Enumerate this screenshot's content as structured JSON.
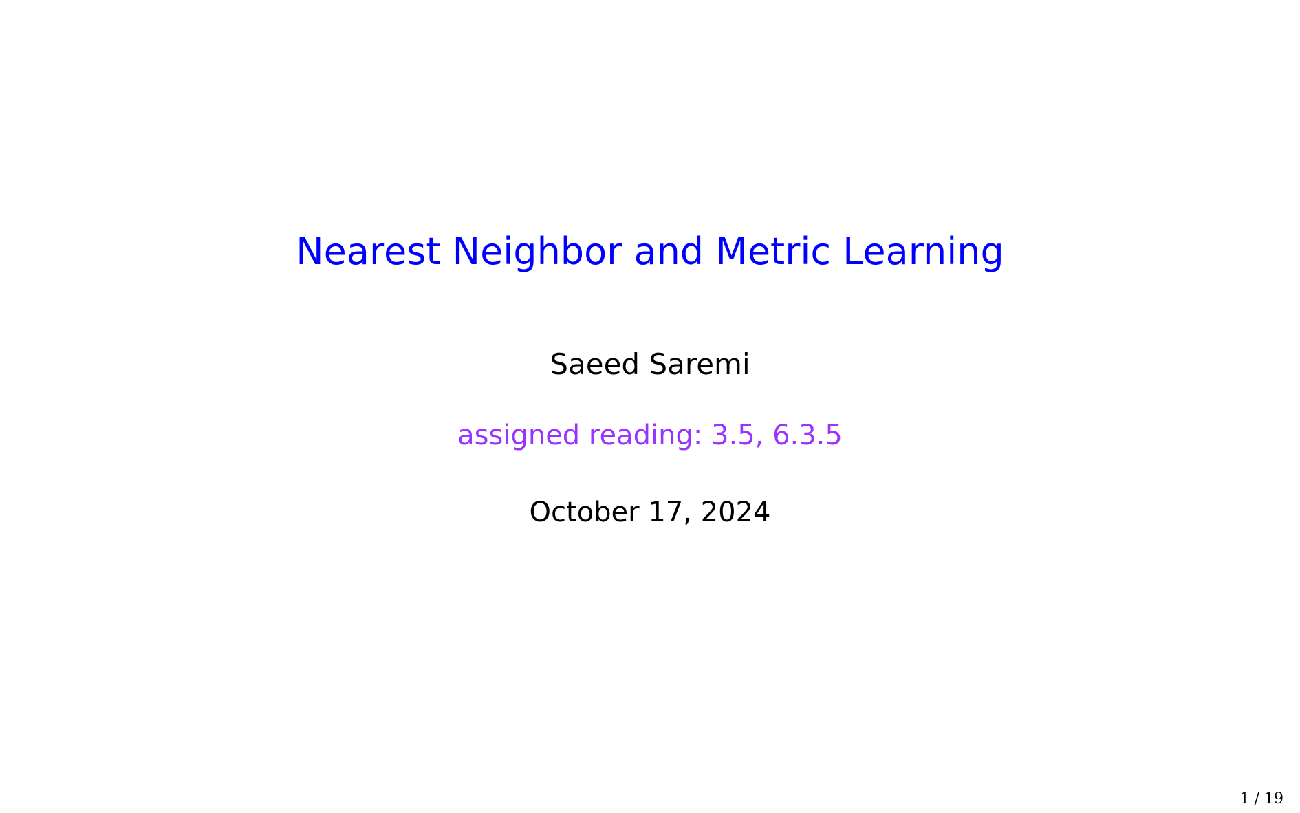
{
  "colors": {
    "title": "#0000ff",
    "reading": "#9933ff",
    "text": "#000000",
    "background": "#ffffff"
  },
  "slide": {
    "title": "Nearest Neighbor and Metric Learning",
    "author": "Saeed Saremi",
    "assigned_reading": "assigned reading: 3.5, 6.3.5",
    "date": "October 17, 2024",
    "page_number": "1 / 19"
  }
}
